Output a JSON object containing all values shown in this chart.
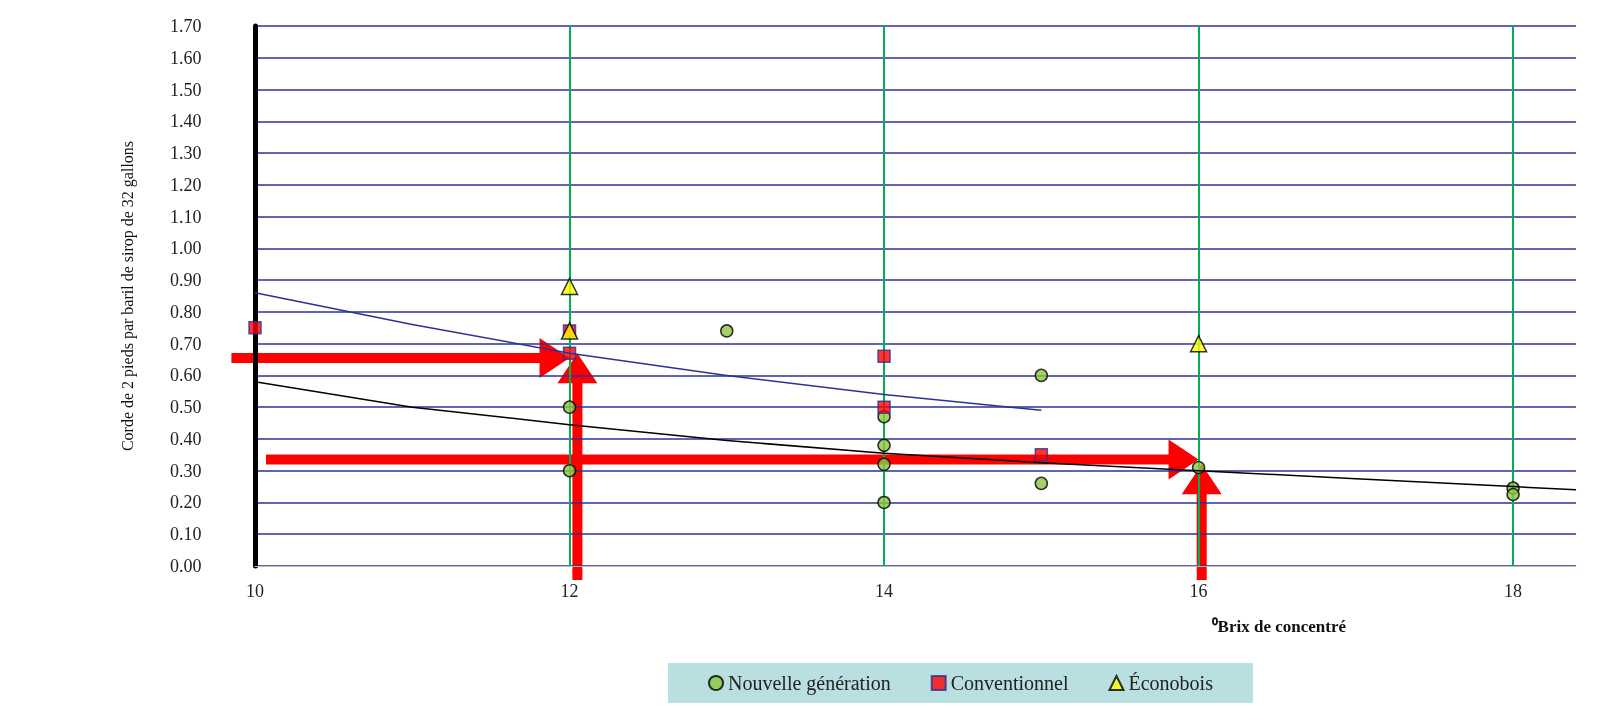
{
  "chart_data": {
    "type": "scatter",
    "xlabel": "⁰Brix de concentré",
    "ylabel": "Corde de 2 pieds par baril de sirop de 32 gallons",
    "xlim": [
      10,
      18.4
    ],
    "xticks": [
      10,
      12,
      14,
      16,
      18
    ],
    "ylim": [
      0,
      1.7
    ],
    "yticks": [
      {
        "value": 0,
        "label": "0.00"
      },
      {
        "value": 0.1,
        "label": "0.10"
      },
      {
        "value": 0.2,
        "label": "0.20"
      },
      {
        "value": 0.3,
        "label": "0.30"
      },
      {
        "value": 0.4,
        "label": "0.40"
      },
      {
        "value": 0.5,
        "label": "0.50"
      },
      {
        "value": 0.6,
        "label": "0.60"
      },
      {
        "value": 0.7,
        "label": "0.70"
      },
      {
        "value": 0.8,
        "label": "0.80"
      },
      {
        "value": 0.9,
        "label": "0.90"
      },
      {
        "value": 1.0,
        "label": "1.00"
      },
      {
        "value": 1.1,
        "label": "1.10"
      },
      {
        "value": 1.2,
        "label": "1.20"
      },
      {
        "value": 1.3,
        "label": "1.30"
      },
      {
        "value": 1.4,
        "label": "1.40"
      },
      {
        "value": 1.5,
        "label": "1.50"
      },
      {
        "value": 1.6,
        "label": "1.60"
      },
      {
        "value": 1.7,
        "label": "1.70"
      }
    ],
    "grid": true,
    "legend": "bottom",
    "series": [
      {
        "name": "Nouvelle génération",
        "marker": "circle",
        "color": "#8cc63f",
        "x": [
          12,
          12,
          13,
          14,
          14,
          14,
          14,
          15,
          15,
          16,
          18,
          18
        ],
        "values": [
          0.5,
          0.3,
          0.74,
          0.47,
          0.38,
          0.32,
          0.2,
          0.6,
          0.26,
          0.31,
          0.245,
          0.225
        ]
      },
      {
        "name": "Conventionnel",
        "marker": "square",
        "color": "#ff0000",
        "x": [
          10,
          12,
          12,
          14,
          14,
          15
        ],
        "values": [
          0.75,
          0.74,
          0.67,
          0.66,
          0.5,
          0.35
        ]
      },
      {
        "name": "Éconobois",
        "marker": "triangle",
        "color": "#ffff00",
        "x": [
          12,
          12,
          16
        ],
        "values": [
          0.88,
          0.74,
          0.7
        ]
      },
      {
        "type": "line",
        "color": "#2e3192",
        "x": [
          10,
          11,
          12,
          13,
          14,
          15
        ],
        "values": [
          0.86,
          0.76,
          0.67,
          0.6,
          0.54,
          0.49
        ]
      },
      {
        "type": "line",
        "color": "#000000",
        "x": [
          10,
          11,
          12,
          13,
          14,
          15,
          16,
          17,
          18,
          18.4
        ],
        "values": [
          0.58,
          0.5,
          0.445,
          0.395,
          0.355,
          0.325,
          0.3,
          0.275,
          0.25,
          0.24
        ]
      }
    ]
  }
}
